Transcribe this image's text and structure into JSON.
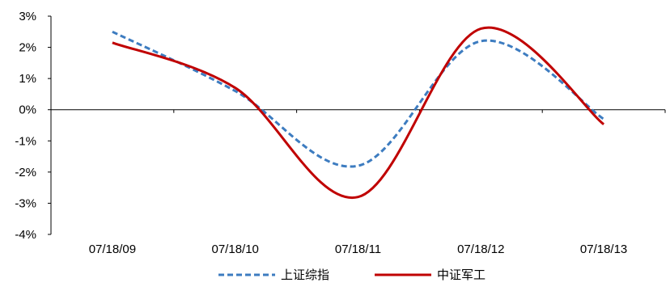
{
  "chart_data": {
    "type": "line",
    "categories": [
      "07/18/09",
      "07/18/10",
      "07/18/11",
      "07/18/12",
      "07/18/13"
    ],
    "ylim": [
      -4,
      3
    ],
    "y_ticks": [
      3,
      2,
      1,
      0,
      -1,
      -2,
      -3,
      -4
    ],
    "y_tick_labels": [
      "3%",
      "2%",
      "1%",
      "0%",
      "-1%",
      "-2%",
      "-3%",
      "-4%"
    ],
    "grid": false,
    "legend_position": "bottom",
    "series": [
      {
        "name": "上证综指",
        "values": [
          2.5,
          0.6,
          -1.8,
          2.2,
          -0.3
        ],
        "color": "#3d7cc0",
        "style": "dashed"
      },
      {
        "name": "中证军工",
        "values": [
          2.15,
          0.7,
          -2.8,
          2.6,
          -0.47
        ],
        "color": "#c00000",
        "style": "solid"
      }
    ]
  }
}
